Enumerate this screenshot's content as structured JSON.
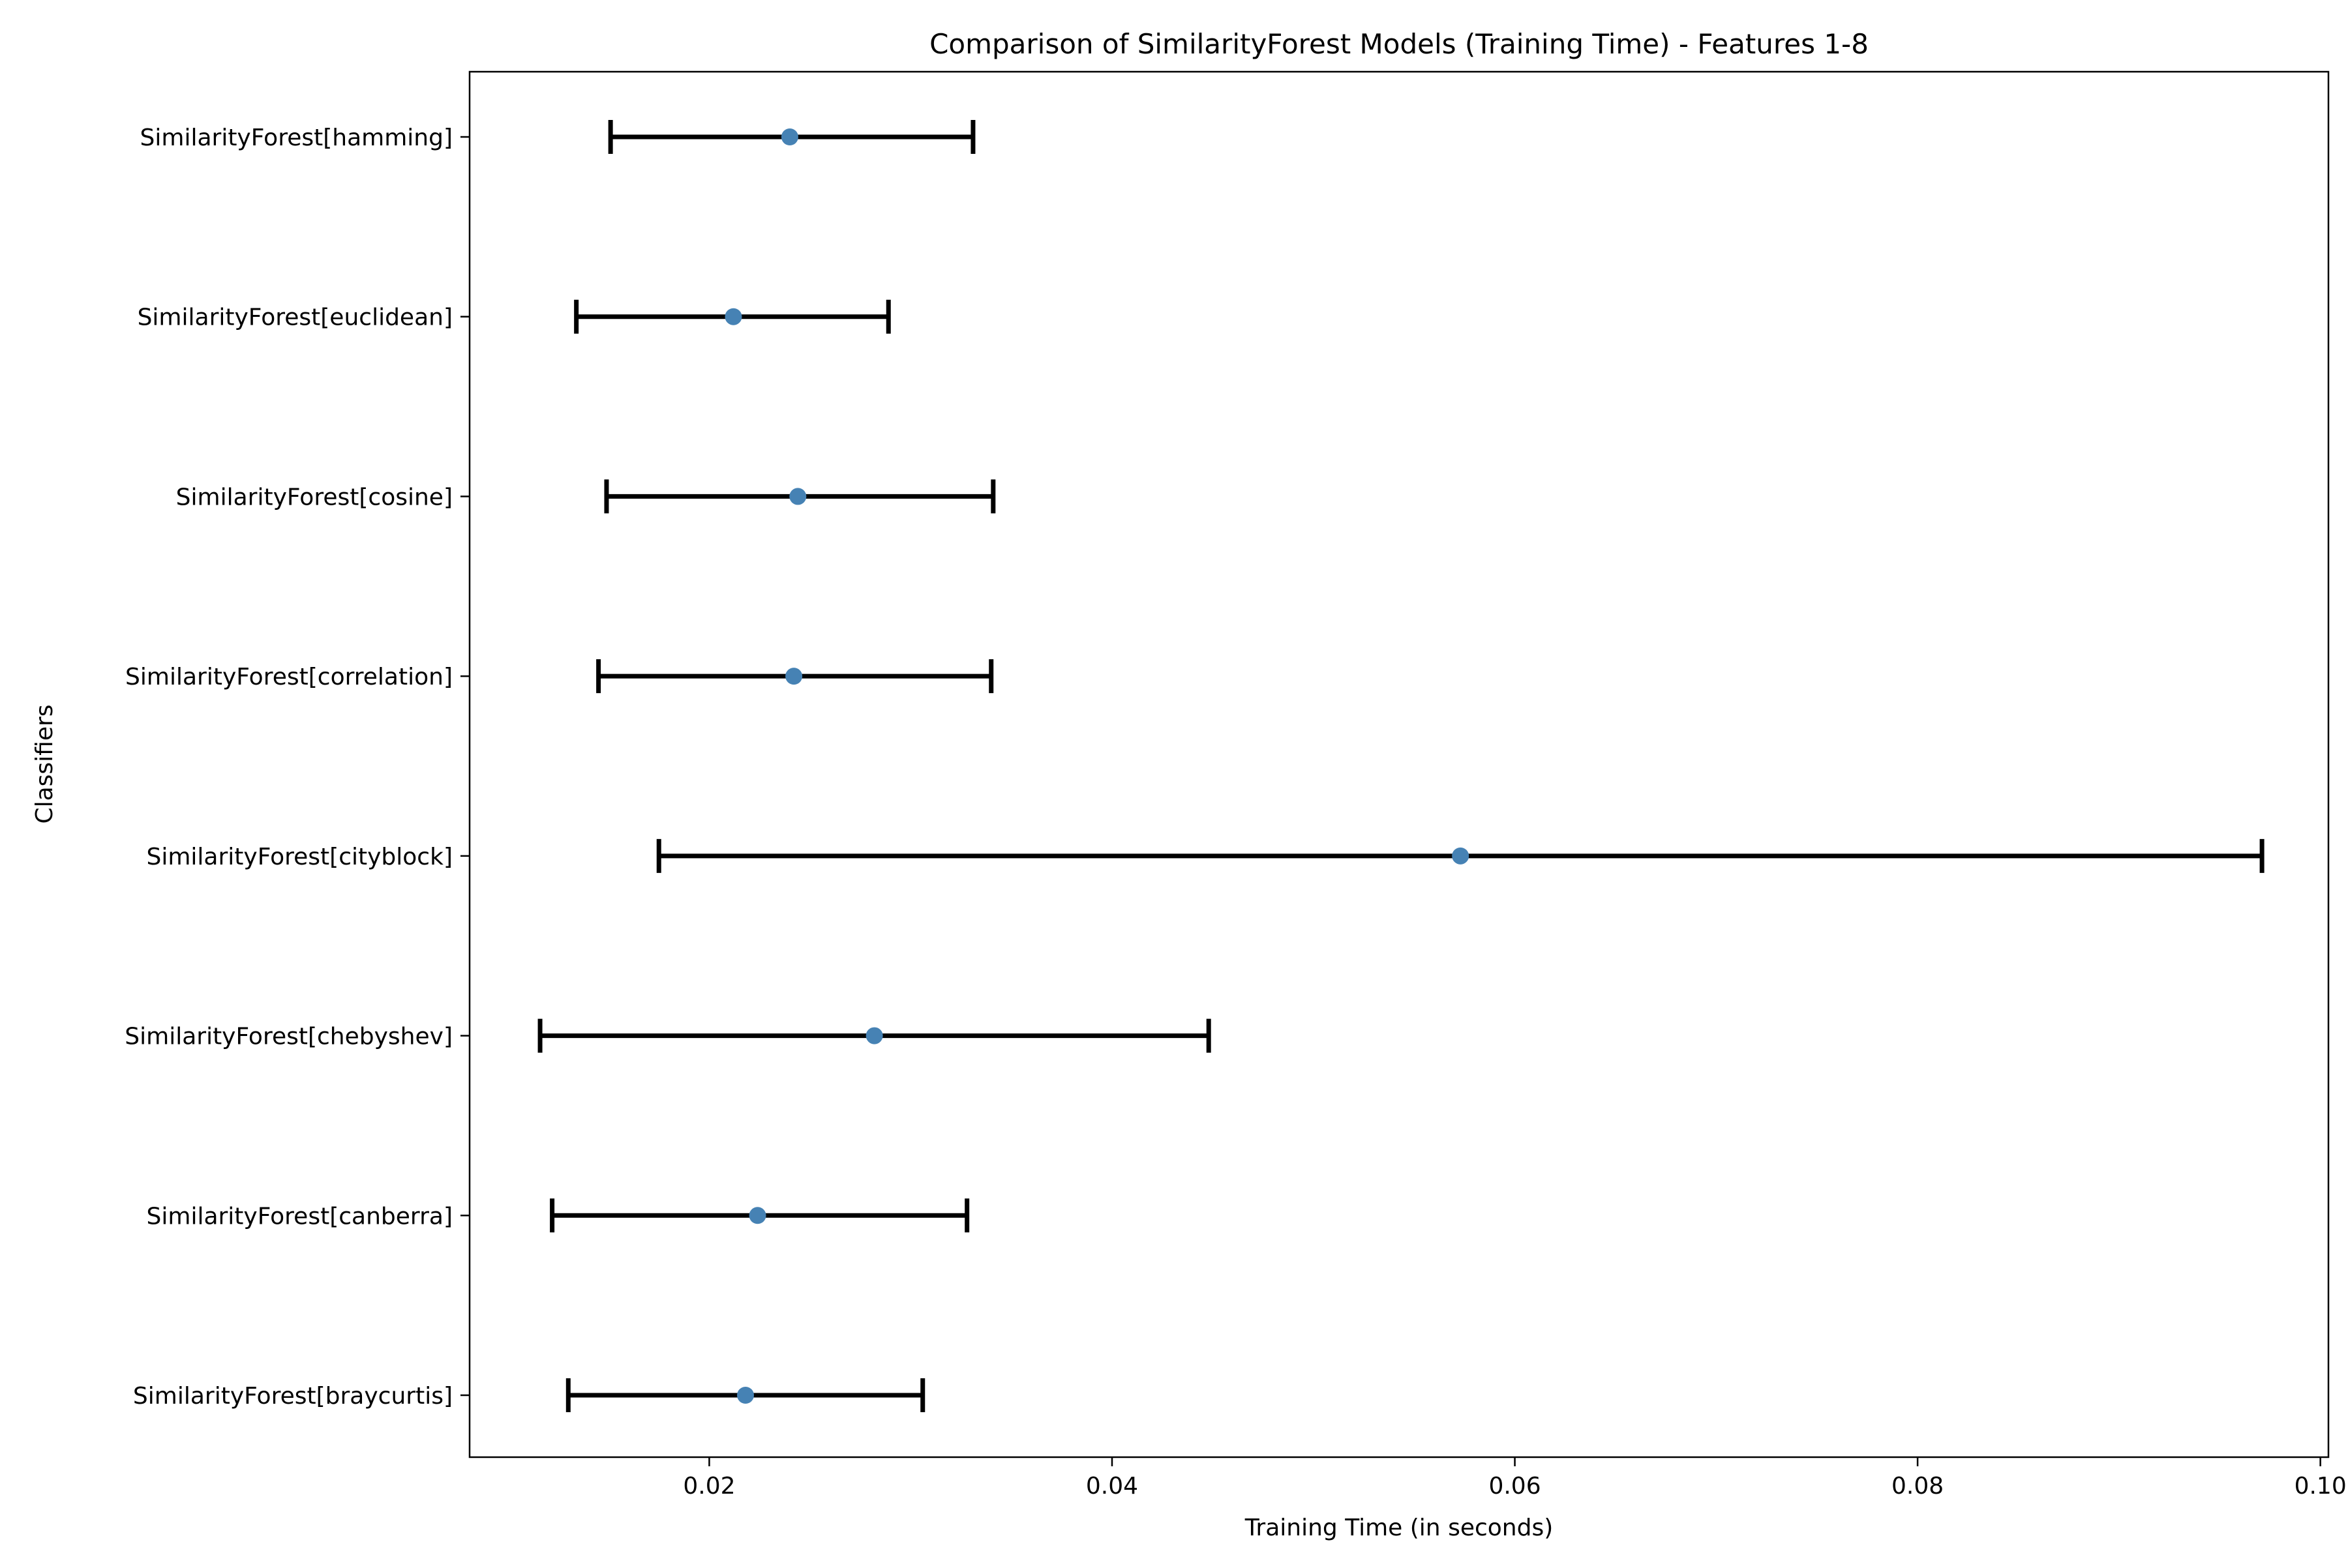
{
  "chart_data": {
    "type": "errorbar",
    "orientation": "horizontal",
    "title": "Comparison of SimilarityForest Models (Training Time) - Features 1-8",
    "xlabel": "Training Time (in seconds)",
    "ylabel": "Classifiers",
    "xlim": [
      0.0081,
      0.1004
    ],
    "x_ticks": [
      0.02,
      0.04,
      0.06,
      0.08,
      0.1
    ],
    "x_tick_labels": [
      "0.02",
      "0.04",
      "0.06",
      "0.08",
      "0.10"
    ],
    "grid": false,
    "legend": "none",
    "marker_color": "#4682b4",
    "errorbar_color": "#000000",
    "categories": [
      "SimilarityForest[braycurtis]",
      "SimilarityForest[canberra]",
      "SimilarityForest[chebyshev]",
      "SimilarityForest[cityblock]",
      "SimilarityForest[correlation]",
      "SimilarityForest[cosine]",
      "SimilarityForest[euclidean]",
      "SimilarityForest[hamming]"
    ],
    "values": [
      0.0218,
      0.0224,
      0.0282,
      0.0573,
      0.0242,
      0.0244,
      0.0212,
      0.024
    ],
    "lower": [
      0.013,
      0.0122,
      0.0116,
      0.0175,
      0.0145,
      0.0149,
      0.0134,
      0.0151
    ],
    "upper": [
      0.0306,
      0.0328,
      0.0448,
      0.0971,
      0.034,
      0.0341,
      0.0289,
      0.0331
    ]
  }
}
